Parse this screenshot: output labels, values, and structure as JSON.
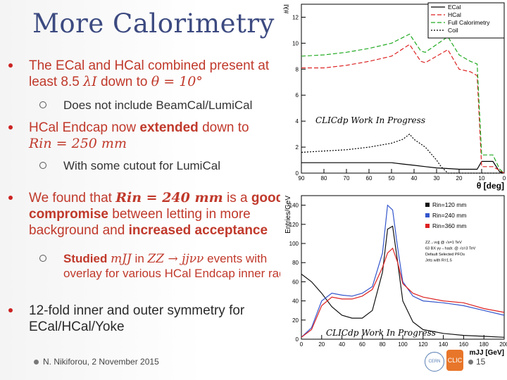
{
  "slide": {
    "title": "More Calorimetry",
    "footer": "N. Nikiforou, 2 November 2015",
    "page_number": "15",
    "watermark_top": "CLICdp Work In Progress",
    "watermark_bottom": "CLICdp Work In Progress",
    "logo_left": "CERN",
    "logo_right": "CLIC"
  },
  "bullets": {
    "b1_line1": "The ECal and HCal combined present at",
    "b1_line2_pre": "least 8.5 ",
    "b1_lambda": "λI",
    "b1_line2_mid": " down to ",
    "b1_theta": "θ = 10°",
    "b1_sub": "Does not include BeamCal/LumiCal",
    "b2_line1_pre": "HCal Endcap now ",
    "b2_line1_bold": "extended",
    "b2_line1_post": " down to",
    "b2_rin": "Rin = 250 mm",
    "b2_sub": "With some cutout for LumiCal",
    "b3_line1_pre": "We found that ",
    "b3_line1_bold": "Rin = 240 mm",
    "b3_line1_mid": " is a ",
    "b3_line1_good": "good",
    "b3_line2_bold": "compromise",
    "b3_line2_post": " between letting in more",
    "b3_line3_pre": "background and ",
    "b3_line3_bold": "increased acceptance",
    "b3_sub_pre": "Studied ",
    "b3_sub_mjj": "mJJ",
    "b3_sub_mid": " in ",
    "b3_sub_proc": "ZZ → jjνν",
    "b3_sub_post": " events with",
    "b3_sub_line2": "overlay for various HCal Endcap inner radii",
    "b4_line1": "12-fold inner and outer symmetry for",
    "b4_line2": "ECal/HCal/Yoke"
  },
  "chart_data": [
    {
      "type": "line",
      "title": "",
      "xlabel": "θ [deg]",
      "ylabel": "#λI",
      "xlim": [
        90,
        0
      ],
      "ylim": [
        0,
        13
      ],
      "x_ticks": [
        "90",
        "80",
        "70",
        "60",
        "50",
        "40",
        "30",
        "20",
        "10",
        "0"
      ],
      "y_ticks": [
        "0",
        "2",
        "4",
        "6",
        "8",
        "10",
        "12"
      ],
      "legend_position": "top-right",
      "series": [
        {
          "name": "ECal",
          "color": "#000000",
          "x": [
            90,
            80,
            70,
            60,
            50,
            45,
            40,
            35,
            30,
            25,
            20,
            15,
            12,
            10,
            5,
            2,
            0
          ],
          "values": [
            0.8,
            0.8,
            0.8,
            0.8,
            0.8,
            0.7,
            0.6,
            0.5,
            0.4,
            0.35,
            0.3,
            0.3,
            0.3,
            0.9,
            0.9,
            0.1,
            0
          ]
        },
        {
          "name": "HCal",
          "color": "#dd2222",
          "x": [
            90,
            80,
            70,
            60,
            50,
            42,
            37,
            35,
            30,
            25,
            20,
            15,
            12,
            10,
            5,
            2,
            0
          ],
          "values": [
            8.1,
            8.1,
            8.3,
            8.6,
            9.0,
            9.9,
            8.6,
            8.5,
            9.0,
            9.5,
            8.0,
            7.8,
            7.5,
            0.5,
            0.5,
            0.2,
            0
          ]
        },
        {
          "name": "Full Calorimetry",
          "color": "#22aa22",
          "x": [
            90,
            80,
            70,
            60,
            50,
            42,
            37,
            35,
            30,
            25,
            20,
            15,
            12,
            10,
            5,
            2,
            0
          ],
          "values": [
            9.0,
            9.1,
            9.3,
            9.6,
            10.0,
            10.7,
            9.4,
            9.3,
            9.9,
            10.5,
            9.1,
            8.6,
            8.4,
            1.4,
            1.4,
            0.3,
            0
          ]
        },
        {
          "name": "Coil",
          "color": "#000000",
          "x": [
            90,
            80,
            70,
            60,
            50,
            45,
            42,
            40,
            35,
            30,
            28,
            25,
            0
          ],
          "values": [
            1.6,
            1.7,
            1.8,
            2.0,
            2.3,
            2.6,
            3.0,
            2.6,
            2.0,
            1.0,
            0.5,
            0,
            0
          ]
        }
      ]
    },
    {
      "type": "line",
      "title": "",
      "xlabel": "mJJ [GeV]",
      "ylabel": "Entries/GeV",
      "xlim": [
        0,
        200
      ],
      "ylim": [
        0,
        150
      ],
      "x_ticks": [
        "0",
        "20",
        "40",
        "60",
        "80",
        "100",
        "120",
        "140",
        "160",
        "180",
        "200"
      ],
      "y_ticks": [
        "0",
        "20",
        "40",
        "60",
        "80",
        "100",
        "120",
        "140"
      ],
      "legend_position": "top-right",
      "legend_notes": [
        "ZZ→ννjj @ √s=1 TeV",
        "63 BX γγ→hadr. @ √s=3 TeV",
        "Default Selected PFOs",
        "Jets with R=1.5"
      ],
      "series": [
        {
          "name": "Rin=120 mm",
          "color": "#111111",
          "x": [
            0,
            10,
            20,
            30,
            40,
            50,
            60,
            70,
            80,
            85,
            90,
            95,
            100,
            110,
            120,
            140,
            160,
            180,
            200
          ],
          "values": [
            68,
            60,
            48,
            34,
            25,
            22,
            22,
            30,
            70,
            115,
            118,
            80,
            40,
            18,
            10,
            6,
            4,
            3,
            2
          ]
        },
        {
          "name": "Rin=240 mm",
          "color": "#3355cc",
          "x": [
            0,
            10,
            20,
            30,
            40,
            50,
            60,
            70,
            80,
            85,
            90,
            95,
            100,
            110,
            120,
            140,
            160,
            180,
            200
          ],
          "values": [
            2,
            12,
            40,
            48,
            46,
            45,
            48,
            55,
            90,
            140,
            135,
            95,
            60,
            45,
            40,
            38,
            35,
            30,
            25
          ]
        },
        {
          "name": "Rin=360 mm",
          "color": "#dd2222",
          "x": [
            0,
            10,
            20,
            30,
            40,
            50,
            60,
            70,
            80,
            85,
            90,
            95,
            100,
            110,
            120,
            140,
            160,
            180,
            200
          ],
          "values": [
            2,
            10,
            35,
            44,
            42,
            42,
            45,
            52,
            75,
            90,
            95,
            80,
            58,
            48,
            44,
            40,
            38,
            32,
            28
          ]
        }
      ]
    }
  ]
}
